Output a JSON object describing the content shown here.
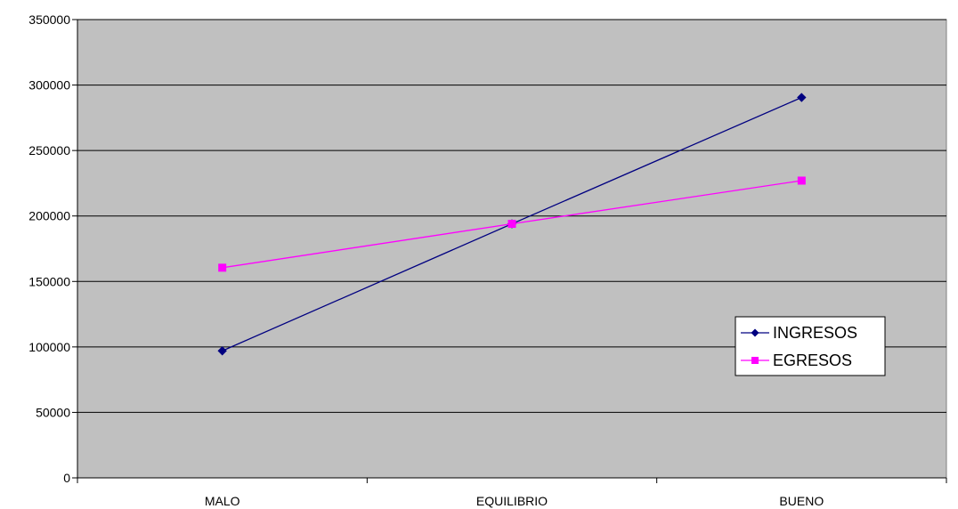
{
  "chart_data": {
    "type": "line",
    "categories": [
      "MALO",
      "EQUILIBRIO",
      "BUENO"
    ],
    "ylim": [
      0,
      350000
    ],
    "yticks": [
      "0",
      "50000",
      "100000",
      "150000",
      "200000",
      "250000",
      "300000",
      "350000"
    ],
    "grid": true,
    "legend_position": "right",
    "plot_background": "#c0c0c0",
    "series": [
      {
        "name": "INGRESOS",
        "values": [
          97000,
          194000,
          290500
        ],
        "color": "#000080",
        "marker": "diamond"
      },
      {
        "name": "EGRESOS",
        "values": [
          160500,
          194000,
          227000
        ],
        "color": "#ff00ff",
        "marker": "square"
      }
    ]
  }
}
